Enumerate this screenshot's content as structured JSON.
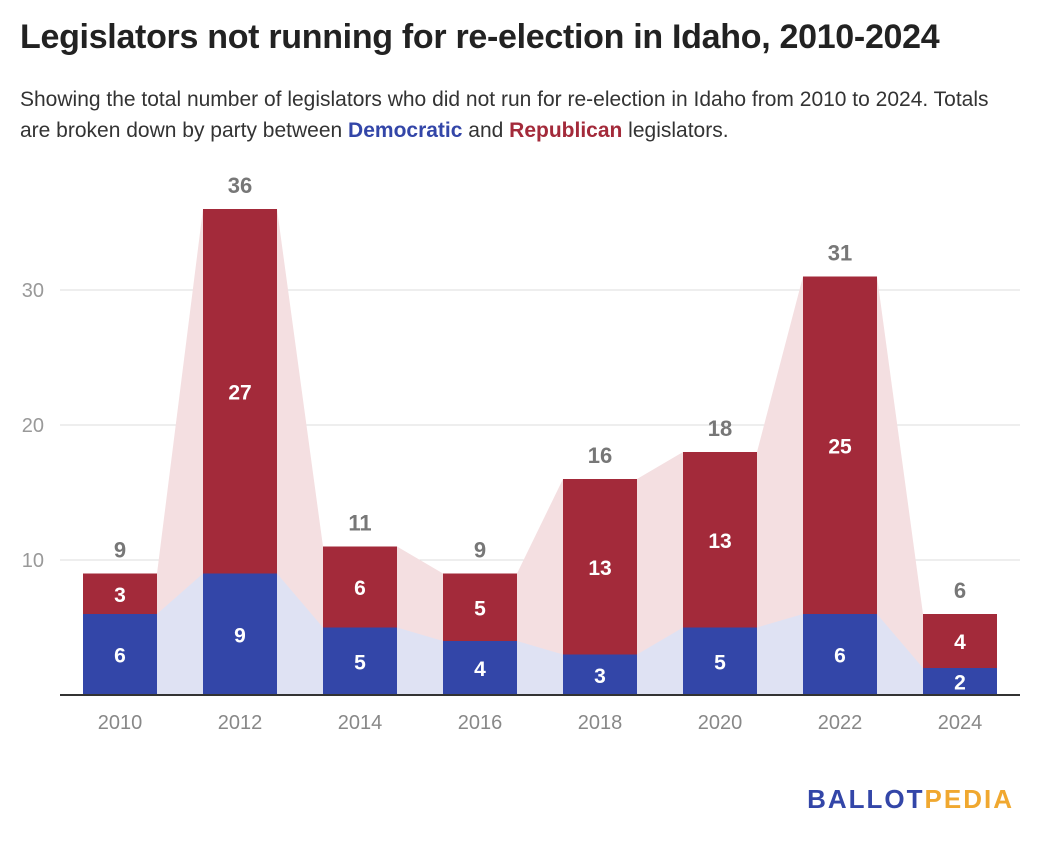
{
  "title": "Legislators not running for re-election in Idaho, 2010-2024",
  "subtitle": {
    "before": "Showing the total number of legislators who did not run for re-election in Idaho from 2010 to 2024. Totals are broken down by party between ",
    "dem": "Democratic",
    "middle": " and ",
    "rep": "Republican",
    "after": " legislators."
  },
  "logo": {
    "part1": "BALLOT",
    "part2": "PEDIA"
  },
  "colors": {
    "democratic": "#3346a8",
    "republican": "#a32a3a",
    "democratic_area": "#dfe2f3",
    "republican_area": "#f4dfe1",
    "grid": "#dddddd",
    "axis": "#333333",
    "tick": "#888888",
    "total_label": "#777777"
  },
  "chart_data": {
    "type": "bar",
    "stacked": true,
    "categories": [
      "2010",
      "2012",
      "2014",
      "2016",
      "2018",
      "2020",
      "2022",
      "2024"
    ],
    "series": [
      {
        "name": "Democratic",
        "values": [
          6,
          9,
          5,
          4,
          3,
          5,
          6,
          2
        ]
      },
      {
        "name": "Republican",
        "values": [
          3,
          27,
          6,
          5,
          13,
          13,
          25,
          4
        ]
      }
    ],
    "totals": [
      9,
      36,
      11,
      9,
      16,
      18,
      31,
      6
    ],
    "y_ticks": [
      10,
      20,
      30
    ],
    "ylim": [
      0,
      36
    ],
    "grid": true,
    "xlabel": "",
    "ylabel": ""
  }
}
